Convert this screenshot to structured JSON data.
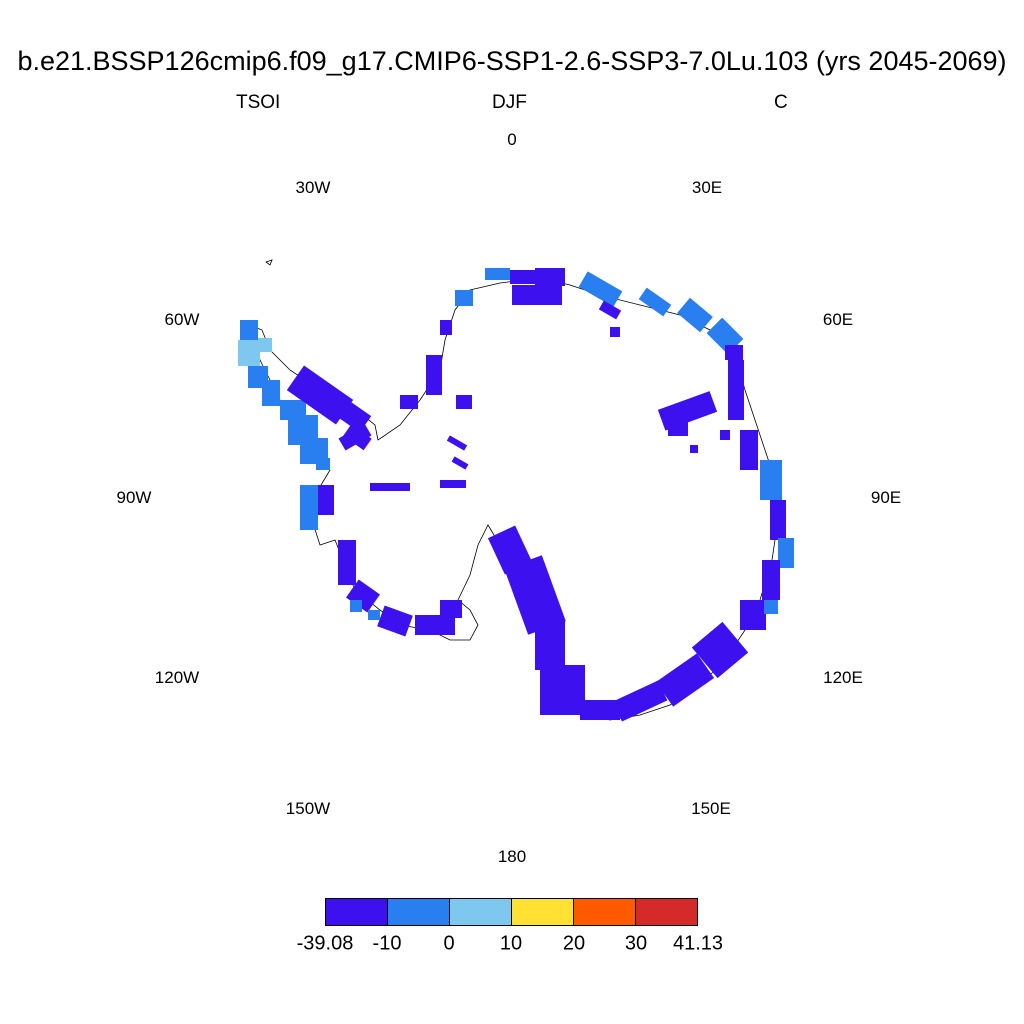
{
  "title": "b.e21.BSSP126cmip6.f09_g17.CMIP6-SSP1-2.6-SSP3-7.0Lu.103 (yrs 2045-2069)",
  "left_label": "TSOI",
  "center_label": "DJF",
  "right_label": "C",
  "longitude_labels": {
    "0": "0",
    "30E": "30E",
    "60E": "60E",
    "90E": "90E",
    "120E": "120E",
    "150E": "150E",
    "180": "180",
    "150W": "150W",
    "120W": "120W",
    "90W": "90W",
    "60W": "60W",
    "30W": "30W"
  },
  "colorbar": {
    "levels": [
      "-39.08",
      "-10",
      "0",
      "10",
      "20",
      "30",
      "41.13"
    ],
    "colors": [
      "#3d10f0",
      "#2a7ff0",
      "#7ec8f0",
      "#ffe033",
      "#ff5a00",
      "#d42a2a"
    ]
  }
}
